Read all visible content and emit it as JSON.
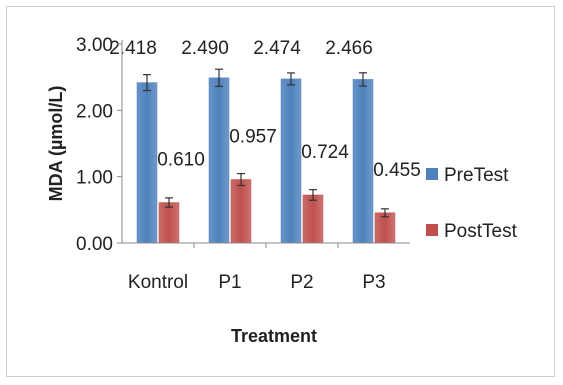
{
  "chart_data": {
    "type": "bar",
    "title": "",
    "xlabel": "Treatment",
    "ylabel": "MDA (µmol/L)",
    "ylim": [
      0,
      3
    ],
    "yticks": [
      "0.00",
      "1.00",
      "2.00",
      "3.00"
    ],
    "categories": [
      "Kontrol",
      "P1",
      "P2",
      "P3"
    ],
    "series": [
      {
        "name": "PreTest",
        "color": "#4f81bd",
        "values": [
          2.418,
          2.49,
          2.474,
          2.466
        ],
        "labels": [
          "2.418",
          "2.490",
          "2.474",
          "2.466"
        ],
        "error": [
          0.12,
          0.13,
          0.09,
          0.1
        ]
      },
      {
        "name": "PostTest",
        "color": "#c0504d",
        "values": [
          0.61,
          0.957,
          0.724,
          0.455
        ],
        "labels": [
          "0.610",
          "0.957",
          "0.724",
          "0.455"
        ],
        "error": [
          0.07,
          0.09,
          0.08,
          0.06
        ]
      }
    ],
    "grid": false,
    "legend": "right"
  }
}
